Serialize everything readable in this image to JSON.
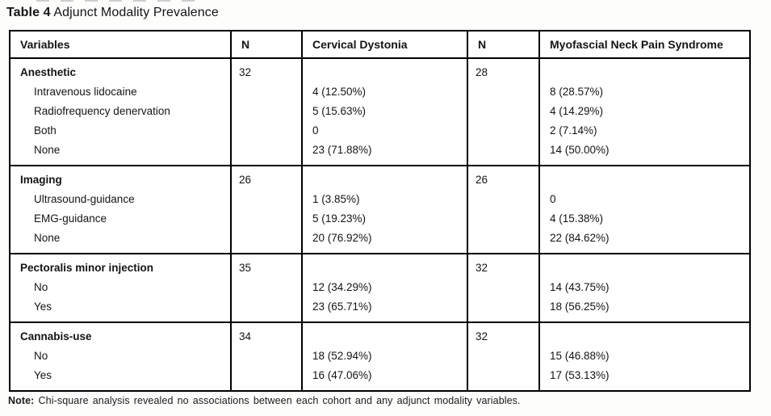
{
  "title": {
    "label": "Table 4",
    "text": " Adjunct Modality Prevalence"
  },
  "table": {
    "headers": [
      "Variables",
      "N",
      "Cervical Dystonia",
      "N",
      "Myofascial Neck Pain Syndrome"
    ],
    "sections": [
      {
        "variable": "Anesthetic",
        "n_cervical_dystonia": "32",
        "n_myofascial": "28",
        "rows": [
          {
            "label": "Intravenous lidocaine",
            "cervical_dystonia": "4 (12.50%)",
            "myofascial": "8 (28.57%)"
          },
          {
            "label": "Radiofrequency denervation",
            "cervical_dystonia": "5 (15.63%)",
            "myofascial": "4 (14.29%)"
          },
          {
            "label": "Both",
            "cervical_dystonia": "0",
            "myofascial": "2 (7.14%)"
          },
          {
            "label": "None",
            "cervical_dystonia": "23 (71.88%)",
            "myofascial": "14 (50.00%)"
          }
        ]
      },
      {
        "variable": "Imaging",
        "n_cervical_dystonia": "26",
        "n_myofascial": "26",
        "rows": [
          {
            "label": "Ultrasound-guidance",
            "cervical_dystonia": "1 (3.85%)",
            "myofascial": "0"
          },
          {
            "label": "EMG-guidance",
            "cervical_dystonia": "5 (19.23%)",
            "myofascial": "4 (15.38%)"
          },
          {
            "label": "None",
            "cervical_dystonia": "20 (76.92%)",
            "myofascial": "22 (84.62%)"
          }
        ]
      },
      {
        "variable": "Pectoralis minor injection",
        "n_cervical_dystonia": "35",
        "n_myofascial": "32",
        "rows": [
          {
            "label": "No",
            "cervical_dystonia": "12 (34.29%)",
            "myofascial": "14 (43.75%)"
          },
          {
            "label": "Yes",
            "cervical_dystonia": "23 (65.71%)",
            "myofascial": "18 (56.25%)"
          }
        ]
      },
      {
        "variable": "Cannabis-use",
        "n_cervical_dystonia": "34",
        "n_myofascial": "32",
        "rows": [
          {
            "label": "No",
            "cervical_dystonia": "18 (52.94%)",
            "myofascial": "15 (46.88%)"
          },
          {
            "label": "Yes",
            "cervical_dystonia": "16 (47.06%)",
            "myofascial": "17 (53.13%)"
          }
        ]
      }
    ]
  },
  "note": {
    "label": "Note:",
    "text": " Chi-square analysis revealed no associations between each cohort and any adjunct modality variables."
  },
  "colors": {
    "border": "#000000",
    "text": "#141414",
    "background": "#fdfdfc",
    "cell_background": "#ffffff"
  }
}
